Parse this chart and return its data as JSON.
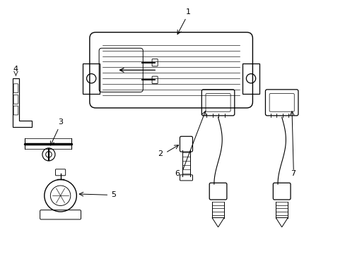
{
  "background_color": "#ffffff",
  "line_color": "#000000",
  "figsize": [
    4.89,
    3.6
  ],
  "dpi": 100,
  "labels": [
    "1",
    "2",
    "3",
    "4",
    "5",
    "6",
    "7"
  ]
}
